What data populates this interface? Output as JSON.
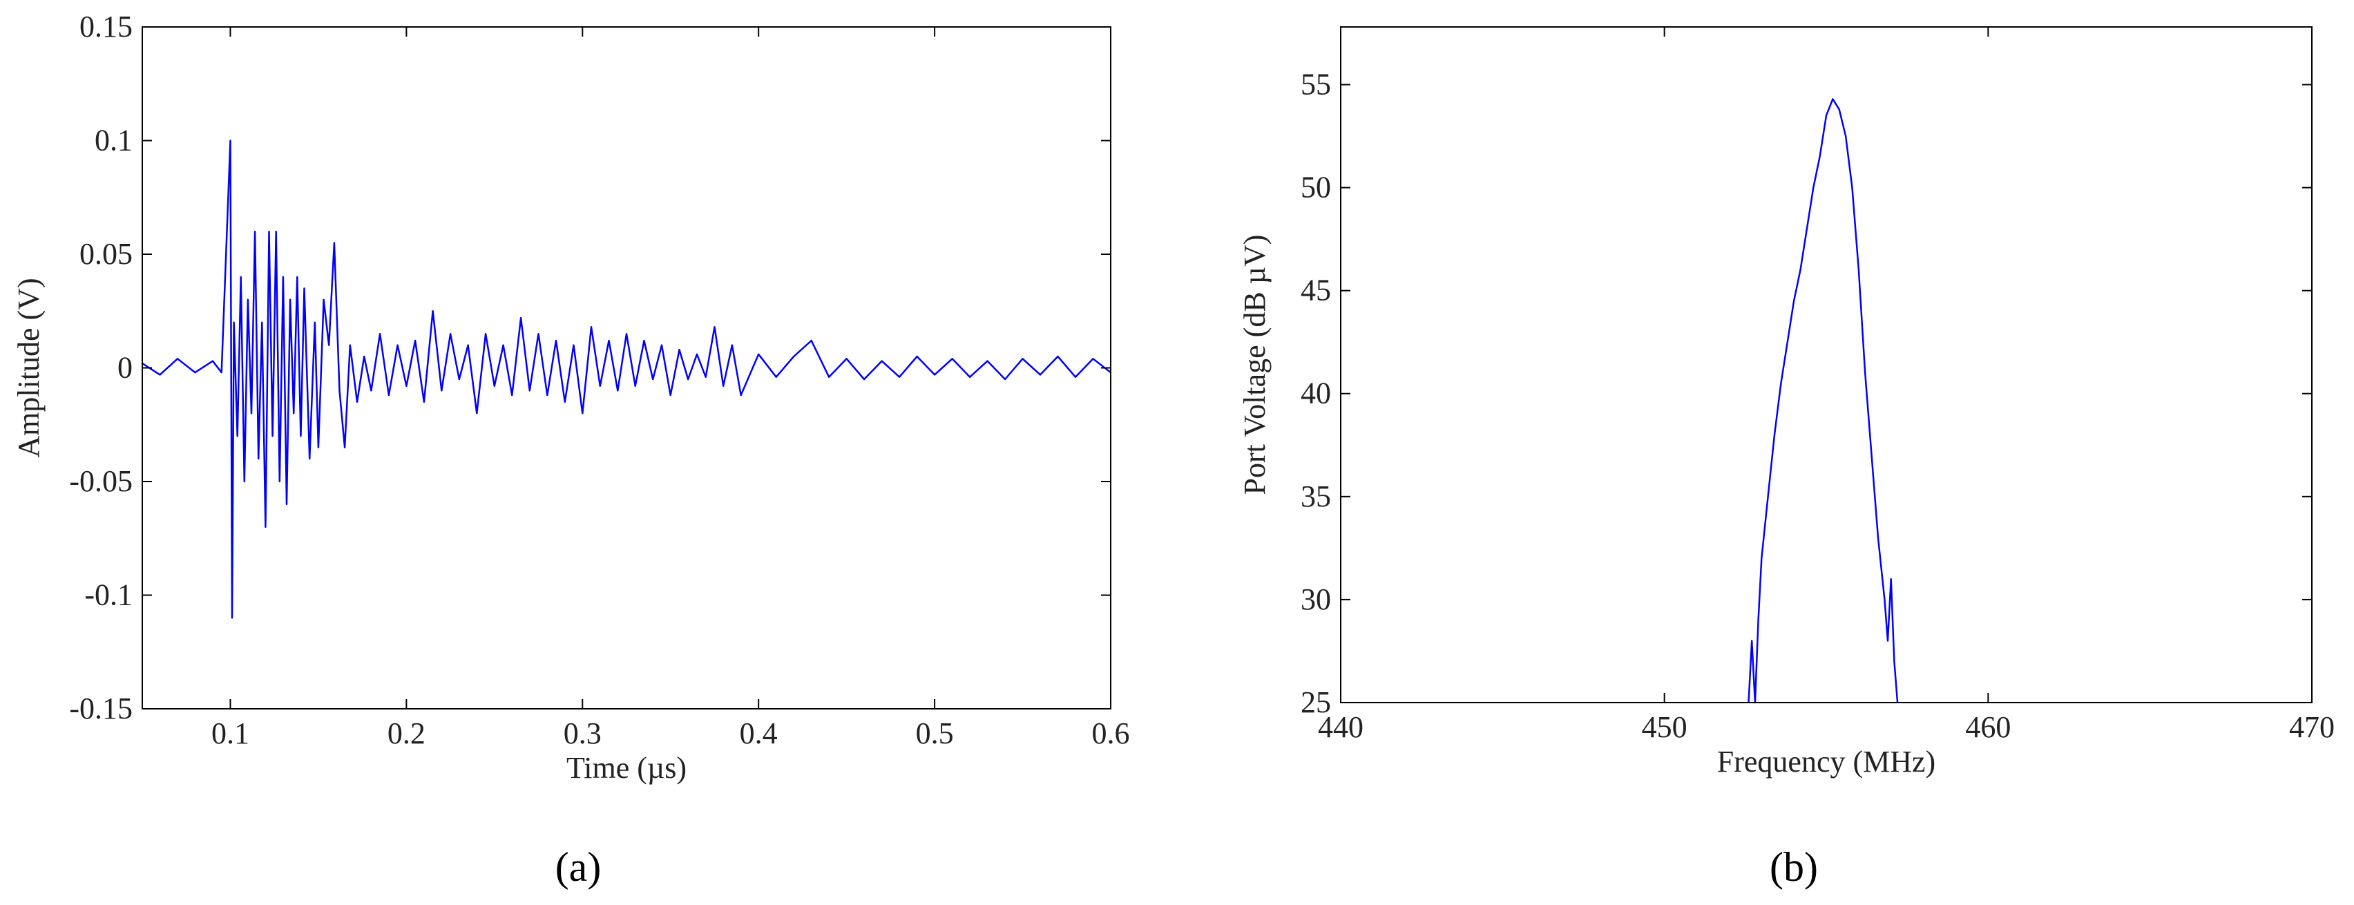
{
  "chart_data": [
    {
      "type": "line",
      "xlabel": "Time (µs)",
      "ylabel": "Amplitude (V)",
      "caption": "(a)",
      "xlim": [
        0.05,
        0.6
      ],
      "xticks": [
        0.1,
        0.2,
        0.3,
        0.4,
        0.5,
        0.6
      ],
      "ylim": [
        -0.15,
        0.15
      ],
      "yticks": [
        -0.15,
        -0.1,
        -0.05,
        0,
        0.05,
        0.1,
        0.15
      ],
      "series": [
        {
          "color": "#0000ff",
          "x": [
            0.05,
            0.06,
            0.07,
            0.08,
            0.09,
            0.095,
            0.1,
            0.101,
            0.102,
            0.104,
            0.106,
            0.108,
            0.11,
            0.112,
            0.114,
            0.116,
            0.118,
            0.12,
            0.122,
            0.124,
            0.126,
            0.128,
            0.13,
            0.132,
            0.134,
            0.136,
            0.138,
            0.14,
            0.142,
            0.145,
            0.148,
            0.15,
            0.153,
            0.156,
            0.159,
            0.162,
            0.165,
            0.168,
            0.172,
            0.176,
            0.18,
            0.185,
            0.19,
            0.195,
            0.2,
            0.205,
            0.21,
            0.215,
            0.22,
            0.225,
            0.23,
            0.235,
            0.24,
            0.245,
            0.25,
            0.255,
            0.26,
            0.265,
            0.27,
            0.275,
            0.28,
            0.285,
            0.29,
            0.295,
            0.3,
            0.305,
            0.31,
            0.315,
            0.32,
            0.325,
            0.33,
            0.335,
            0.34,
            0.345,
            0.35,
            0.355,
            0.36,
            0.365,
            0.37,
            0.375,
            0.38,
            0.385,
            0.39,
            0.4,
            0.41,
            0.42,
            0.43,
            0.44,
            0.45,
            0.46,
            0.47,
            0.48,
            0.49,
            0.5,
            0.51,
            0.52,
            0.53,
            0.54,
            0.55,
            0.56,
            0.57,
            0.58,
            0.59,
            0.6
          ],
          "values": [
            0.002,
            -0.003,
            0.004,
            -0.002,
            0.003,
            -0.002,
            0.1,
            -0.11,
            0.02,
            -0.03,
            0.04,
            -0.05,
            0.03,
            -0.02,
            0.06,
            -0.04,
            0.02,
            -0.07,
            0.06,
            -0.03,
            0.06,
            -0.05,
            0.04,
            -0.06,
            0.03,
            -0.02,
            0.04,
            -0.03,
            0.035,
            -0.04,
            0.02,
            -0.035,
            0.03,
            0.01,
            0.055,
            -0.01,
            -0.035,
            0.01,
            -0.015,
            0.005,
            -0.01,
            0.015,
            -0.012,
            0.01,
            -0.008,
            0.012,
            -0.015,
            0.025,
            -0.01,
            0.015,
            -0.005,
            0.01,
            -0.02,
            0.015,
            -0.008,
            0.01,
            -0.012,
            0.022,
            -0.01,
            0.015,
            -0.012,
            0.012,
            -0.015,
            0.01,
            -0.02,
            0.018,
            -0.008,
            0.012,
            -0.01,
            0.015,
            -0.008,
            0.012,
            -0.005,
            0.01,
            -0.012,
            0.008,
            -0.005,
            0.006,
            -0.004,
            0.018,
            -0.008,
            0.01,
            -0.012,
            0.006,
            -0.004,
            0.005,
            0.012,
            -0.004,
            0.004,
            -0.005,
            0.003,
            -0.004,
            0.005,
            -0.003,
            0.004,
            -0.004,
            0.003,
            -0.005,
            0.004,
            -0.003,
            0.005,
            -0.004,
            0.004,
            -0.002
          ]
        }
      ]
    },
    {
      "type": "line",
      "xlabel": "Frequency (MHz)",
      "ylabel": "Port Voltage (dB µV)",
      "caption": "(b)",
      "xlim": [
        440,
        470
      ],
      "xticks": [
        440,
        450,
        460,
        470
      ],
      "ylim": [
        25,
        57.8
      ],
      "yticks": [
        25,
        30,
        35,
        40,
        45,
        50,
        55
      ],
      "series": [
        {
          "color": "#0000ff",
          "x": [
            452.6,
            452.7,
            452.8,
            452.9,
            453.0,
            453.2,
            453.4,
            453.6,
            453.8,
            454.0,
            454.2,
            454.4,
            454.6,
            454.8,
            455.0,
            455.2,
            455.4,
            455.6,
            455.8,
            456.0,
            456.2,
            456.4,
            456.6,
            456.8,
            456.9,
            457.0,
            457.1,
            457.2
          ],
          "values": [
            25,
            28,
            25,
            29,
            32,
            35,
            38,
            40.5,
            42.5,
            44.5,
            46,
            48,
            50,
            51.5,
            53.5,
            54.3,
            53.8,
            52.5,
            50,
            46,
            41,
            37,
            33,
            30,
            28,
            31,
            27,
            25
          ]
        }
      ]
    }
  ]
}
